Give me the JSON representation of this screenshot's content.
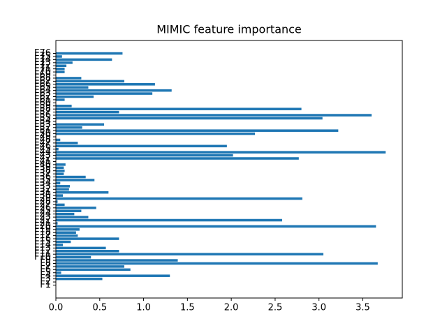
{
  "chart_data": {
    "type": "barh",
    "title": "MIMIC feature importance",
    "color": "#1f77b4",
    "categories": [
      "F1",
      "F2",
      "F3",
      "F4",
      "F5",
      "F6",
      "F7",
      "F8",
      "F9",
      "F10",
      "F11",
      "F12",
      "F13",
      "F14",
      "F15",
      "F16",
      "F17",
      "F18",
      "F19",
      "F20",
      "F21",
      "F22",
      "F23",
      "F24",
      "F25",
      "F26",
      "F27",
      "F28",
      "F29",
      "F30",
      "F31",
      "F32",
      "F33",
      "F34",
      "F35",
      "F36",
      "F37",
      "F38",
      "F39",
      "F40",
      "F41",
      "F42",
      "F43",
      "F44",
      "F45",
      "F46",
      "F47",
      "F48",
      "F49",
      "F50",
      "F51",
      "F52",
      "F53",
      "F54",
      "F55",
      "F56",
      "F57",
      "F58",
      "F59",
      "F60",
      "F61",
      "F62",
      "F63",
      "F64",
      "F65",
      "F66",
      "F67",
      "F68",
      "F69",
      "F70",
      "F71",
      "F72",
      "F73",
      "F74",
      "F75",
      "F76"
    ],
    "values": [
      0,
      0,
      0.53,
      1.3,
      0.06,
      0.85,
      0.78,
      3.67,
      1.39,
      0.4,
      3.05,
      0.72,
      0.57,
      0.08,
      0.17,
      0.72,
      0.25,
      0.23,
      0.27,
      3.65,
      0.02,
      2.58,
      0.37,
      0.21,
      0.29,
      0.46,
      0.1,
      0.02,
      2.81,
      0.08,
      0.6,
      0.15,
      0.16,
      0.05,
      0.44,
      0.34,
      0.09,
      0.1,
      0.09,
      0.11,
      0,
      2.77,
      2.02,
      3.76,
      0.03,
      1.95,
      0.25,
      0.05,
      0,
      2.27,
      3.22,
      0.3,
      0.55,
      0,
      3.04,
      3.6,
      0.72,
      2.8,
      0.18,
      0,
      0.1,
      0.43,
      1.1,
      1.32,
      0.37,
      1.13,
      0.78,
      0.29,
      0,
      0.1,
      0.1,
      0.12,
      0.19,
      0.64,
      0.07,
      0.76
    ],
    "xlim": [
      0,
      3.95
    ],
    "xticks": [
      {
        "value": 0,
        "label": "0.0"
      },
      {
        "value": 0.5,
        "label": "0.5"
      },
      {
        "value": 1,
        "label": "1.0"
      },
      {
        "value": 1.5,
        "label": "1.5"
      },
      {
        "value": 2,
        "label": "2.0"
      },
      {
        "value": 2.5,
        "label": "2.5"
      },
      {
        "value": 3,
        "label": "3.0"
      },
      {
        "value": 3.5,
        "label": "3.5"
      }
    ]
  }
}
